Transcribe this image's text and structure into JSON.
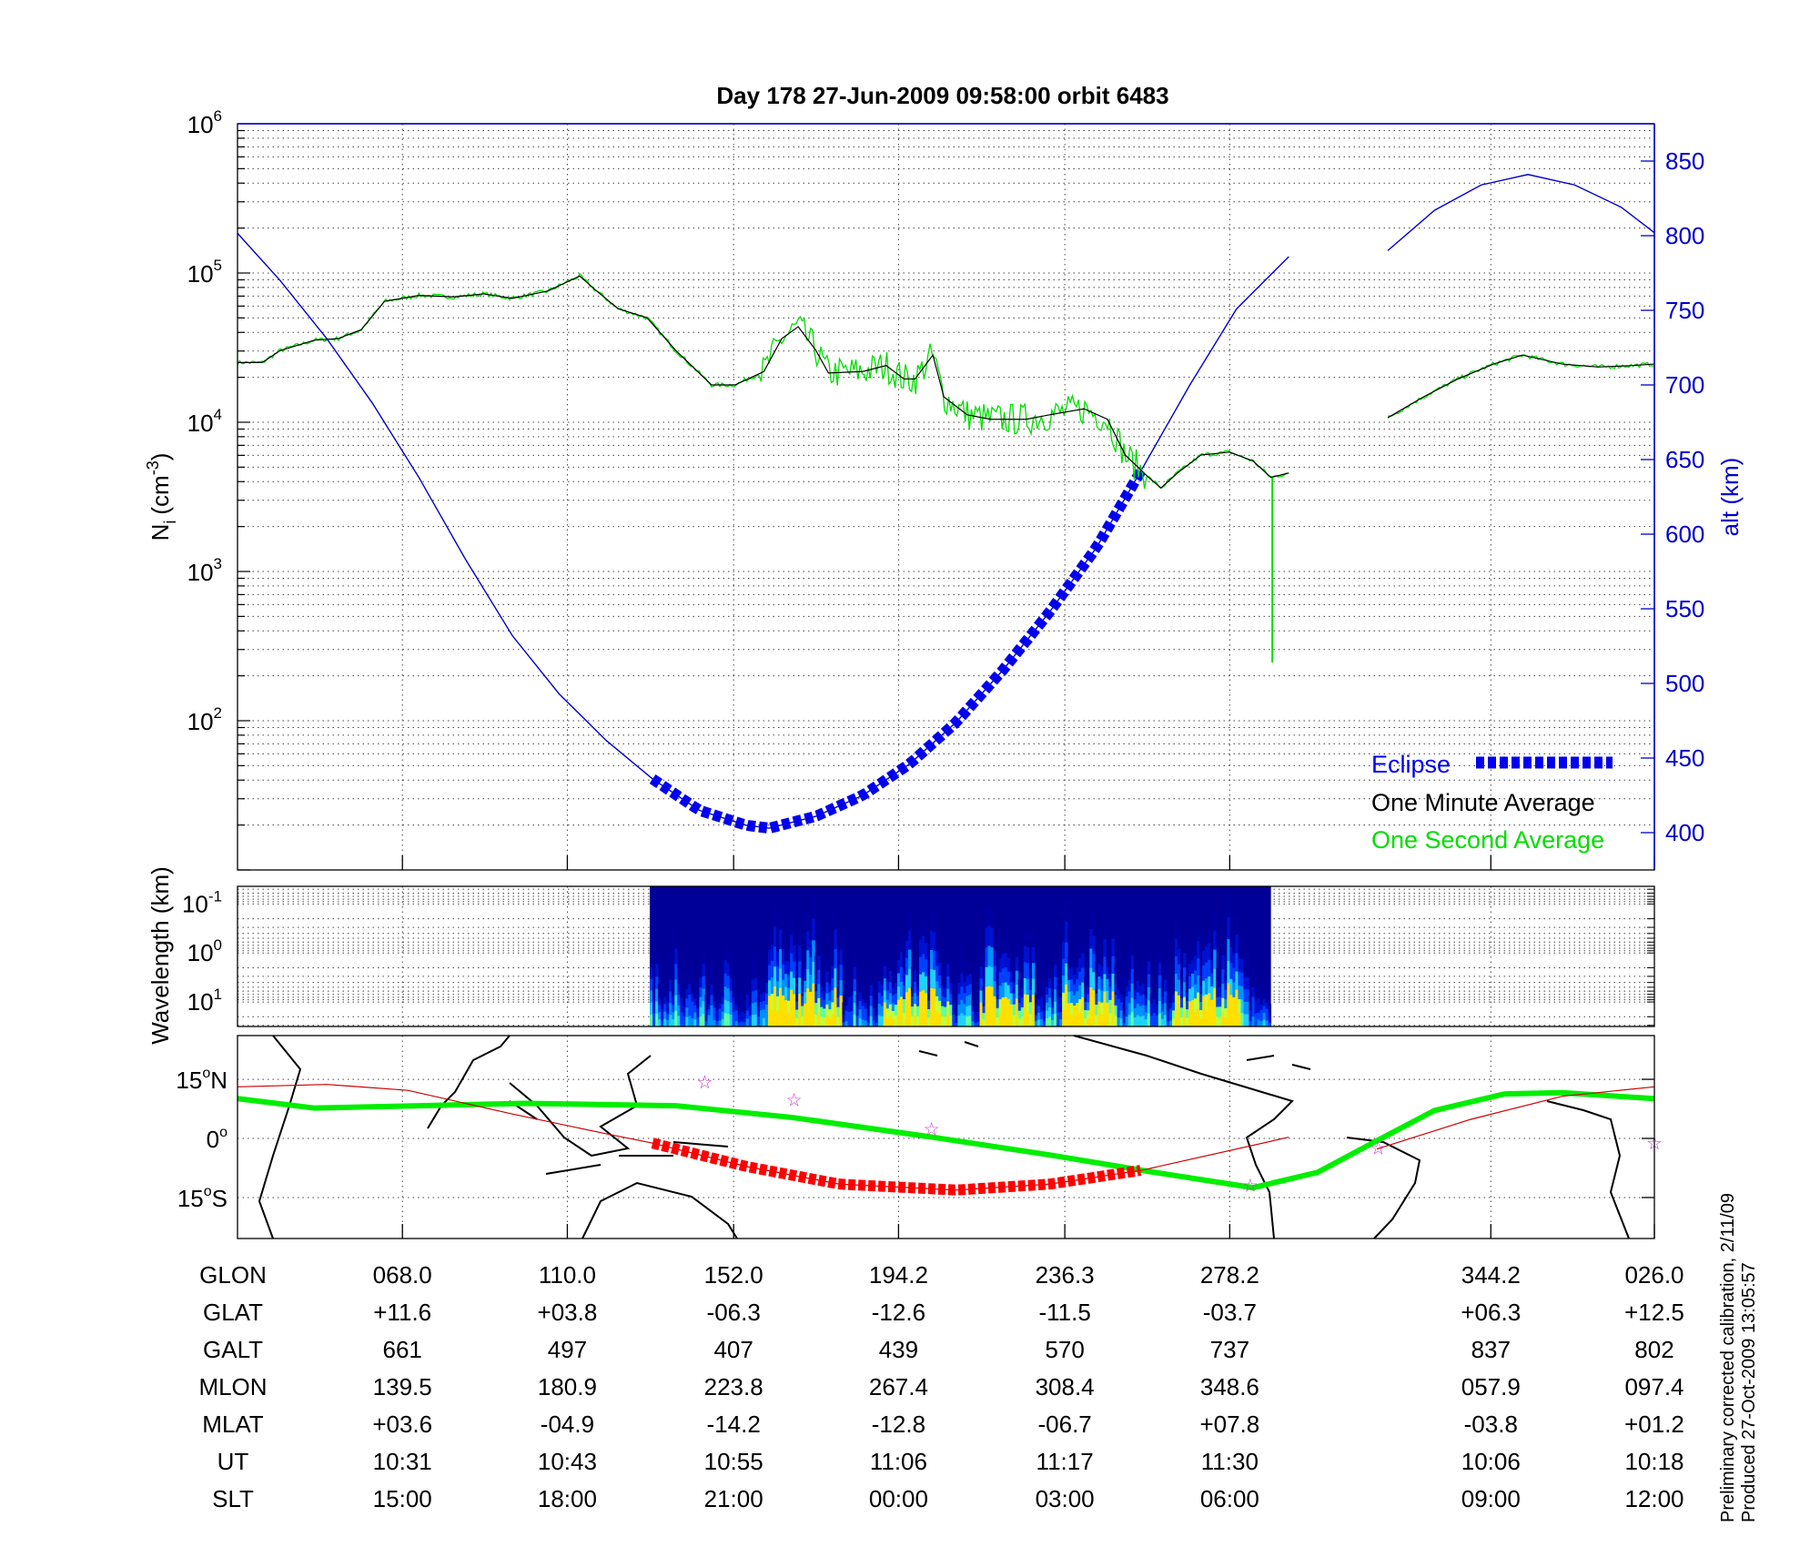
{
  "title": "Day 178  27-Jun-2009 09:58:00   orbit 6483",
  "colors": {
    "altitude": "#0000cc",
    "one_minute": "#000000",
    "one_second": "#00dd00",
    "eclipse_top": "#0000ee",
    "eclipse_map": "#ff0000",
    "track": "#cc0000",
    "mag_equator": "#00ee00",
    "stars": "#cc33cc"
  },
  "chart_data": [
    {
      "type": "line",
      "name": "ion-density-altitude",
      "x_unit": "minutes from plot start",
      "xlim": [
        0,
        103.1
      ],
      "xticks": [
        12.0,
        24.0,
        36.1,
        48.1,
        60.2,
        72.2,
        91.2,
        103.1
      ],
      "ylabel": "N_i (cm^-3)",
      "ylabel_main": "N",
      "ylabel_sub": "i",
      "ylabel_unit": "(cm",
      "ylabel_exp": "-3",
      "ylabel_close": ")",
      "yscale": "log",
      "ylim_log10": [
        1,
        6
      ],
      "yticks": [
        {
          "base": "10",
          "exp": "6",
          "log": 6
        },
        {
          "base": "10",
          "exp": "5",
          "log": 5
        },
        {
          "base": "10",
          "exp": "4",
          "log": 4
        },
        {
          "base": "10",
          "exp": "3",
          "log": 3
        },
        {
          "base": "10",
          "exp": "2",
          "log": 2
        }
      ],
      "y2label": "alt (km)",
      "y2lim": [
        375,
        875
      ],
      "y2ticks": [
        "850",
        "800",
        "750",
        "700",
        "650",
        "600",
        "550",
        "500",
        "450",
        "400"
      ],
      "grid": true,
      "legend": {
        "placement": "bottom-right",
        "entries": [
          "Eclipse",
          "One Minute Average",
          "One Second Average"
        ]
      },
      "series": [
        {
          "name": "One Minute Average",
          "log10_segments": [
            [
              [
                0,
                4.4
              ],
              [
                1.8,
                4.4
              ],
              [
                3.1,
                4.48
              ],
              [
                5.6,
                4.55
              ],
              [
                7.3,
                4.56
              ],
              [
                9.0,
                4.62
              ],
              [
                10.7,
                4.81
              ],
              [
                13.2,
                4.85
              ],
              [
                15.8,
                4.84
              ],
              [
                17.9,
                4.86
              ],
              [
                20.0,
                4.83
              ],
              [
                22.6,
                4.88
              ],
              [
                24.9,
                4.98
              ],
              [
                26.0,
                4.89
              ],
              [
                27.7,
                4.76
              ],
              [
                29.8,
                4.7
              ],
              [
                31.9,
                4.48
              ],
              [
                34.5,
                4.25
              ],
              [
                36.2,
                4.25
              ],
              [
                38.3,
                4.34
              ],
              [
                39.6,
                4.56
              ],
              [
                40.8,
                4.64
              ],
              [
                42.1,
                4.48
              ],
              [
                43.0,
                4.33
              ],
              [
                45.5,
                4.34
              ],
              [
                47.2,
                4.38
              ],
              [
                48.5,
                4.29
              ],
              [
                49.3,
                4.29
              ],
              [
                50.6,
                4.45
              ],
              [
                51.4,
                4.17
              ],
              [
                53.1,
                4.05
              ],
              [
                54.8,
                4.02
              ],
              [
                57.4,
                4.02
              ],
              [
                59.1,
                4.05
              ],
              [
                61.6,
                4.09
              ],
              [
                63.3,
                4.02
              ],
              [
                64.6,
                3.78
              ],
              [
                66.3,
                3.63
              ],
              [
                67.2,
                3.56
              ],
              [
                68.4,
                3.66
              ],
              [
                70.1,
                3.78
              ],
              [
                72.2,
                3.8
              ],
              [
                73.9,
                3.74
              ],
              [
                75.2,
                3.63
              ],
              [
                76.5,
                3.66
              ]
            ],
            [
              [
                83.7,
                4.03
              ],
              [
                86.3,
                4.17
              ],
              [
                88.8,
                4.29
              ],
              [
                91.4,
                4.39
              ],
              [
                93.5,
                4.45
              ],
              [
                96.4,
                4.39
              ],
              [
                99.0,
                4.37
              ],
              [
                101.5,
                4.38
              ],
              [
                103.1,
                4.39
              ]
            ]
          ]
        },
        {
          "name": "One Second Average",
          "noise_ranges": [
            [
              38.0,
              66.0
            ]
          ],
          "spike": {
            "x": 75.3,
            "from_log10": 3.63,
            "to_log10": 2.39
          }
        },
        {
          "name": "Altitude (km)",
          "segments": [
            [
              [
                0,
                801.6
              ],
              [
                3.1,
                770
              ],
              [
                6.5,
                731
              ],
              [
                9.8,
                688
              ],
              [
                13.2,
                638
              ],
              [
                16.6,
                583
              ],
              [
                20.0,
                532
              ],
              [
                23.4,
                493
              ],
              [
                26.8,
                462
              ],
              [
                30.2,
                436
              ],
              [
                33.6,
                415
              ],
              [
                37.0,
                405
              ],
              [
                38.7,
                403
              ],
              [
                42.1,
                411
              ],
              [
                45.5,
                425
              ],
              [
                48.9,
                446
              ],
              [
                52.3,
                474
              ],
              [
                55.7,
                509
              ],
              [
                59.1,
                548
              ],
              [
                62.5,
                591
              ],
              [
                65.9,
                645
              ],
              [
                69.3,
                700
              ],
              [
                72.7,
                751
              ],
              [
                76.5,
                786
              ]
            ],
            [
              [
                83.7,
                790
              ],
              [
                87.1,
                817
              ],
              [
                90.5,
                834
              ],
              [
                93.9,
                841
              ],
              [
                97.3,
                834
              ],
              [
                100.7,
                819
              ],
              [
                103.1,
                802
              ]
            ]
          ]
        },
        {
          "name": "Eclipse",
          "x_range": [
            30.2,
            65.7
          ]
        }
      ]
    },
    {
      "type": "heatmap",
      "name": "wavelength-spectrogram",
      "ylabel": "Wavelength (km)",
      "ylim_log10": [
        -1.36,
        1.5
      ],
      "yticks": [
        {
          "base": "10",
          "exp": "-1",
          "log": -1
        },
        {
          "base": "10",
          "exp": "0",
          "log": 0
        },
        {
          "base": "10",
          "exp": "1",
          "log": 1
        }
      ],
      "x_range": [
        30.0,
        75.2
      ],
      "intense_ranges": [
        [
          38.5,
          44
        ],
        [
          47,
          52
        ],
        [
          54,
          58
        ],
        [
          60,
          64
        ],
        [
          68,
          73
        ]
      ]
    },
    {
      "type": "line",
      "name": "ground-track-map",
      "ylim": [
        -25.4,
        26.1
      ],
      "yticks": [
        {
          "label": "15",
          "deg": "o",
          "hem": "N",
          "lat": 15
        },
        {
          "label": "0",
          "deg": "o",
          "hem": "",
          "lat": 0
        },
        {
          "label": "15",
          "deg": "o",
          "hem": "S",
          "lat": -15
        }
      ],
      "series": [
        {
          "name": "Ground track",
          "points": [
            [
              0,
              13.1
            ],
            [
              6.5,
              13.7
            ],
            [
              12.4,
              12.2
            ],
            [
              20.0,
              6.2
            ],
            [
              26.8,
              1.2
            ],
            [
              30.2,
              -1.2
            ],
            [
              37.0,
              -7.1
            ],
            [
              43.8,
              -11.6
            ],
            [
              52.3,
              -13.1
            ],
            [
              59.1,
              -11.6
            ],
            [
              65.9,
              -8.0
            ],
            [
              76.5,
              0.3
            ],
            [
              82.9,
              -2.7
            ],
            [
              89.7,
              4.8
            ],
            [
              96.4,
              10.7
            ],
            [
              103.1,
              13.1
            ]
          ]
        },
        {
          "name": "Magnetic equator",
          "points": [
            [
              0,
              10.1
            ],
            [
              5.6,
              7.7
            ],
            [
              13.2,
              8.3
            ],
            [
              20.9,
              8.9
            ],
            [
              31.9,
              8.3
            ],
            [
              40.4,
              5.3
            ],
            [
              50.6,
              0.3
            ],
            [
              59.1,
              -4.2
            ],
            [
              66.7,
              -8.6
            ],
            [
              73.9,
              -12.5
            ],
            [
              78.6,
              -8.6
            ],
            [
              82.9,
              -0.6
            ],
            [
              87.1,
              7.1
            ],
            [
              92.2,
              11.3
            ],
            [
              96.4,
              11.6
            ],
            [
              103.1,
              10.1
            ]
          ]
        },
        {
          "name": "Eclipse track",
          "x_range": [
            30.2,
            65.7
          ]
        },
        {
          "name": "Stations",
          "points": [
            [
              34.0,
              14.3
            ],
            [
              40.5,
              9.8
            ],
            [
              50.5,
              2.4
            ],
            [
              73.7,
              -11.9
            ],
            [
              83.0,
              -2.4
            ],
            [
              103.1,
              -1.2
            ]
          ]
        }
      ]
    }
  ],
  "table": {
    "rows": [
      {
        "label": "GLON",
        "values": [
          "068.0",
          "110.0",
          "152.0",
          "194.2",
          "236.3",
          "278.2",
          "344.2",
          "026.0"
        ]
      },
      {
        "label": "GLAT",
        "values": [
          "+11.6",
          "+03.8",
          "-06.3",
          "-12.6",
          "-11.5",
          "-03.7",
          "+06.3",
          "+12.5"
        ]
      },
      {
        "label": "GALT",
        "values": [
          "661",
          "497",
          "407",
          "439",
          "570",
          "737",
          "837",
          "802"
        ]
      },
      {
        "label": "MLON",
        "values": [
          "139.5",
          "180.9",
          "223.8",
          "267.4",
          "308.4",
          "348.6",
          "057.9",
          "097.4"
        ]
      },
      {
        "label": "MLAT",
        "values": [
          "+03.6",
          "-04.9",
          "-14.2",
          "-12.8",
          "-06.7",
          "+07.8",
          "-03.8",
          "+01.2"
        ]
      },
      {
        "label": "UT",
        "values": [
          "10:31",
          "10:43",
          "10:55",
          "11:06",
          "11:17",
          "11:30",
          "10:06",
          "10:18"
        ]
      },
      {
        "label": "SLT",
        "values": [
          "15:00",
          "18:00",
          "21:00",
          "00:00",
          "03:00",
          "06:00",
          "09:00",
          "12:00"
        ]
      }
    ]
  },
  "footer": {
    "line1": "Preliminary corrected calibration,  2/11/09",
    "line2": "Produced 27-Oct-2009 13:05:57"
  }
}
